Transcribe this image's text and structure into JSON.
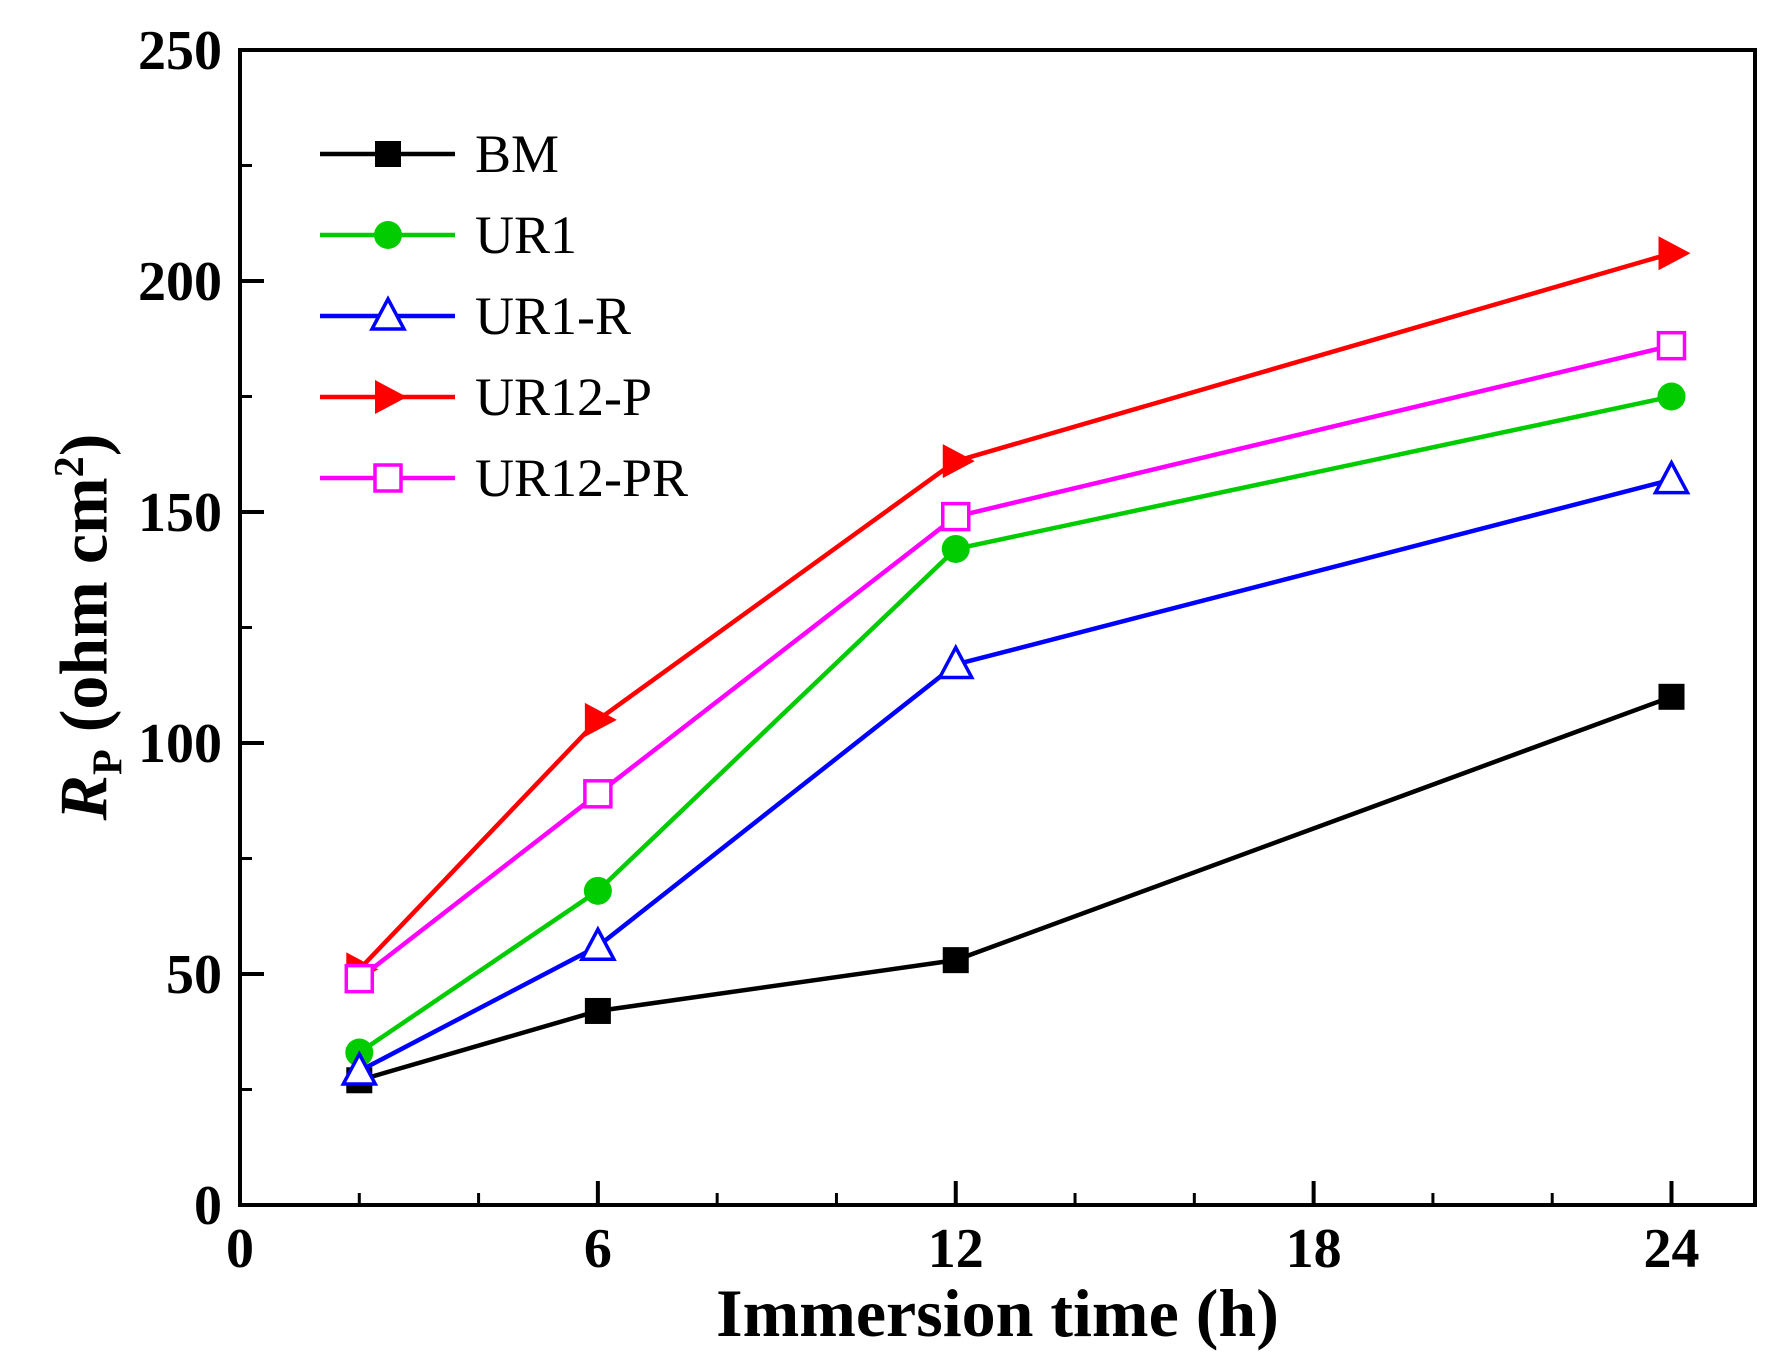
{
  "figure": {
    "background": "#ffffff",
    "frame_color": "#000000"
  },
  "axes": {
    "xlabel": "Immersion time (h)",
    "ylabel": {
      "r": "R",
      "sub": "P",
      "mid": " (ohm cm",
      "sup": "2",
      "end": ")"
    }
  },
  "chart_data": {
    "type": "line",
    "title": "",
    "xlabel": "Immersion time (h)",
    "ylabel": "R_P (ohm cm^2)",
    "x": [
      2,
      6,
      12,
      24
    ],
    "xlim": [
      0,
      25.4
    ],
    "ylim": [
      0,
      250
    ],
    "xticks": [
      0,
      6,
      12,
      18,
      24
    ],
    "yticks": [
      0,
      50,
      100,
      150,
      200,
      250
    ],
    "x_minor_step": 2,
    "y_minor_step": 25,
    "grid": false,
    "legend_position": "upper-left",
    "series": [
      {
        "name": "BM",
        "color": "#000000",
        "marker": "square-filled",
        "values": [
          27,
          42,
          53,
          110
        ]
      },
      {
        "name": "UR1",
        "color": "#00cc00",
        "marker": "circle-filled",
        "values": [
          33,
          68,
          142,
          175
        ]
      },
      {
        "name": "UR1-R",
        "color": "#0000ff",
        "marker": "triangle-up-open",
        "values": [
          29,
          56,
          117,
          157
        ]
      },
      {
        "name": "UR12-P",
        "color": "#ff0000",
        "marker": "triangle-right-filled",
        "values": [
          51,
          105,
          161,
          206
        ]
      },
      {
        "name": "UR12-PR",
        "color": "#ff00ff",
        "marker": "square-open",
        "values": [
          49,
          89,
          149,
          186
        ]
      }
    ]
  }
}
